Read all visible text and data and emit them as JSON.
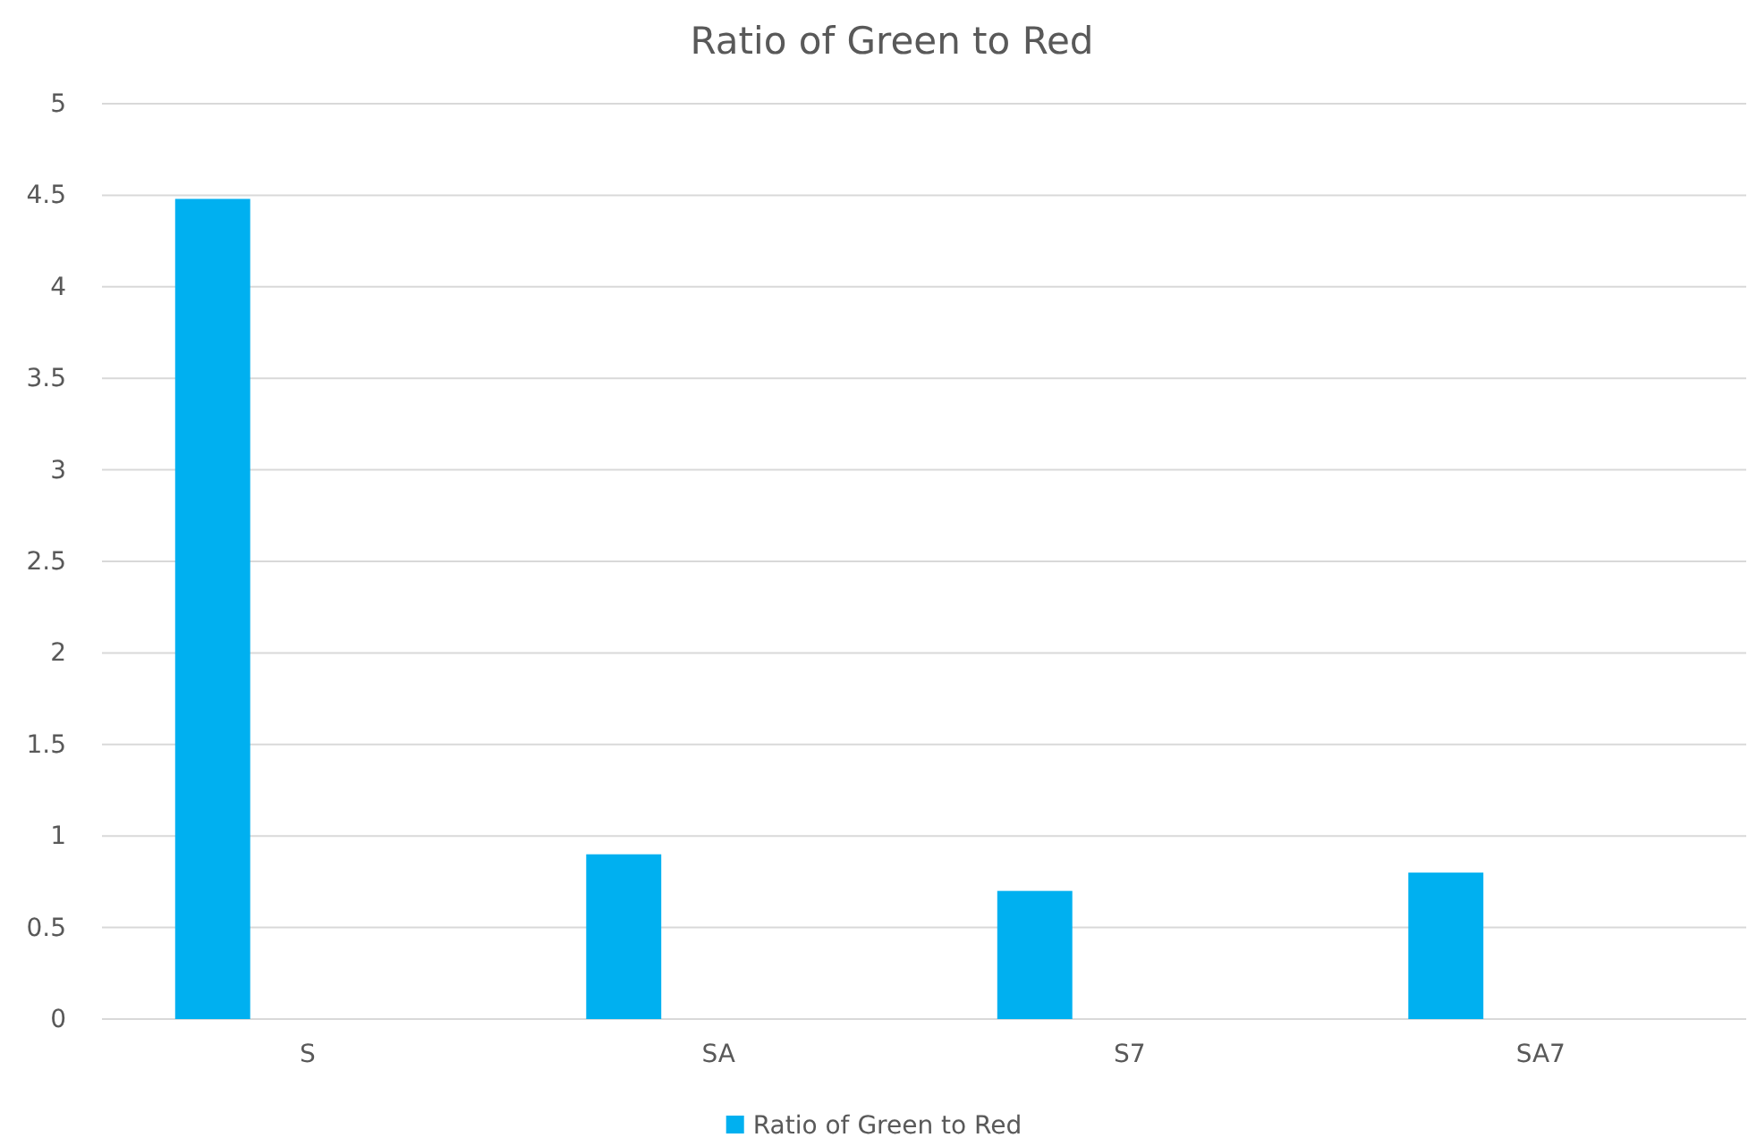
{
  "chart_data": {
    "type": "bar",
    "title": "Ratio of Green to Red",
    "categories": [
      "S",
      "SA",
      "S7",
      "SA7"
    ],
    "series": [
      {
        "name": "Ratio of Green to Red",
        "color": "#00b0f0",
        "values": [
          4.48,
          0.9,
          0.7,
          0.8
        ]
      }
    ],
    "ylim": [
      0,
      5
    ],
    "yticks": [
      0,
      0.5,
      1,
      1.5,
      2,
      2.5,
      3,
      3.5,
      4,
      4.5,
      5
    ],
    "grid": "y",
    "legend": "bottom"
  }
}
